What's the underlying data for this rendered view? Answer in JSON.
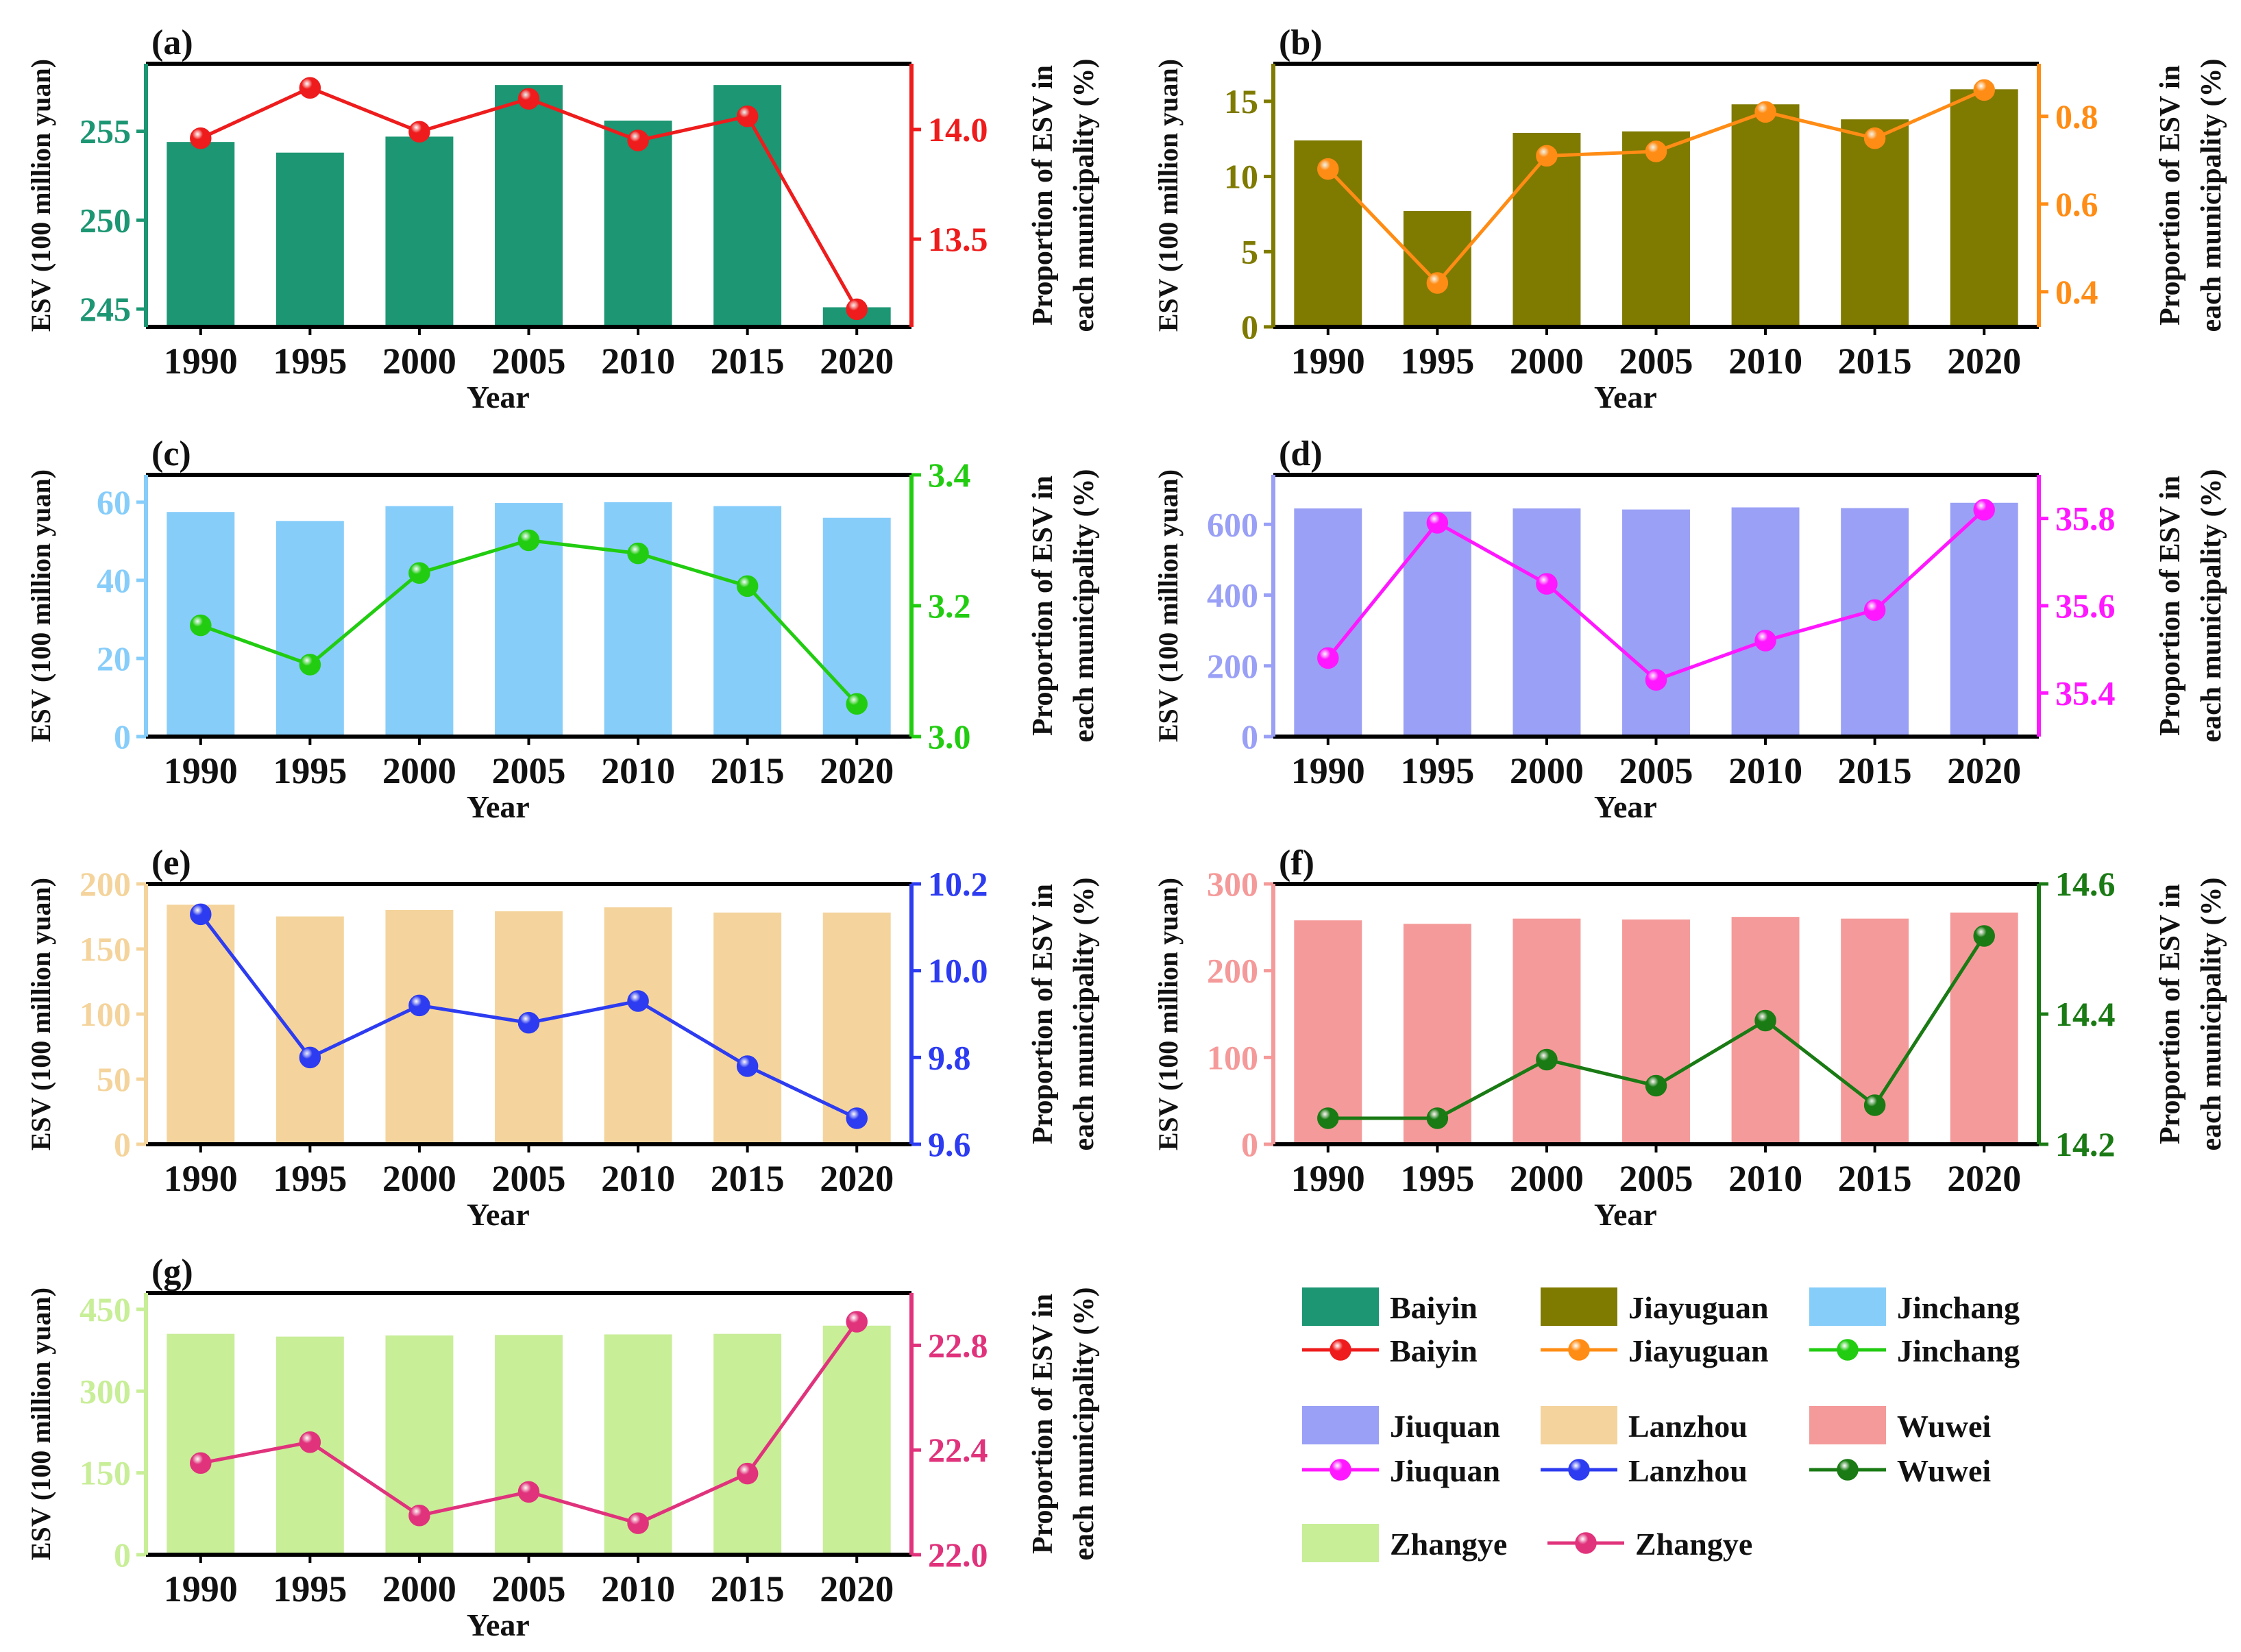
{
  "x_title": "Year",
  "y_left_title": "ESV (100 million yuan)",
  "y_right_title_line1": "Proportion of ESV in",
  "y_right_title_line2": "each municipality (%)",
  "chart_data": [
    {
      "panel": "(a)",
      "type": "bar+line",
      "name": "Baiyin",
      "categories": [
        "1990",
        "1995",
        "2000",
        "2005",
        "2010",
        "2015",
        "2020"
      ],
      "bar_values": [
        254.4,
        253.8,
        254.7,
        257.6,
        255.6,
        257.6,
        245.1
      ],
      "line_values": [
        13.96,
        14.19,
        13.99,
        14.14,
        13.95,
        14.06,
        13.18
      ],
      "bar_ylim": [
        244.0,
        258.8
      ],
      "bar_ticks": [
        "245",
        "250",
        "255"
      ],
      "line_ylim": [
        13.1,
        14.3
      ],
      "line_ticks": [
        "13.5",
        "14.0"
      ],
      "bar_color": "#1c9673",
      "line_color": "#ee1c1c",
      "right_axis_color": "#ee1c1c"
    },
    {
      "panel": "(b)",
      "type": "bar+line",
      "name": "Jiayuguan",
      "categories": [
        "1990",
        "1995",
        "2000",
        "2005",
        "2010",
        "2015",
        "2020"
      ],
      "bar_values": [
        12.4,
        7.7,
        12.9,
        13.0,
        14.8,
        13.8,
        15.8
      ],
      "line_values": [
        0.68,
        0.42,
        0.71,
        0.72,
        0.81,
        0.75,
        0.86
      ],
      "bar_ylim": [
        0,
        17.5
      ],
      "bar_ticks": [
        "0",
        "5",
        "10",
        "15"
      ],
      "line_ylim": [
        0.32,
        0.92
      ],
      "line_ticks": [
        "0.4",
        "0.6",
        "0.8"
      ],
      "bar_color": "#7f7a00",
      "line_color": "#ff8c14",
      "right_axis_color": "#ff8c14"
    },
    {
      "panel": "(c)",
      "type": "bar+line",
      "name": "Jinchang",
      "categories": [
        "1990",
        "1995",
        "2000",
        "2005",
        "2010",
        "2015",
        "2020"
      ],
      "bar_values": [
        57.5,
        55.2,
        59.0,
        59.8,
        60.0,
        59.0,
        56.0
      ],
      "line_values": [
        3.17,
        3.11,
        3.25,
        3.3,
        3.28,
        3.23,
        3.05
      ],
      "bar_ylim": [
        0,
        67
      ],
      "bar_ticks": [
        "0",
        "20",
        "40",
        "60"
      ],
      "line_ylim": [
        3.0,
        3.4
      ],
      "line_ticks": [
        "3.0",
        "3.2",
        "3.4"
      ],
      "bar_color": "#87cdfa",
      "line_color": "#22cc11",
      "right_axis_color": "#22cc11"
    },
    {
      "panel": "(d)",
      "type": "bar+line",
      "name": "Jiuquan",
      "categories": [
        "1990",
        "1995",
        "2000",
        "2005",
        "2010",
        "2015",
        "2020"
      ],
      "bar_values": [
        645,
        636,
        645,
        642,
        648,
        646,
        661
      ],
      "line_values": [
        35.48,
        35.79,
        35.65,
        35.43,
        35.52,
        35.59,
        35.82
      ],
      "bar_ylim": [
        0,
        740
      ],
      "bar_ticks": [
        "0",
        "200",
        "400",
        "600"
      ],
      "line_ylim": [
        35.3,
        35.9
      ],
      "line_ticks": [
        "35.4",
        "35.6",
        "35.8"
      ],
      "bar_color": "#9aa0f5",
      "line_color": "#ff18ff",
      "right_axis_color": "#ff18ff"
    },
    {
      "panel": "(e)",
      "type": "bar+line",
      "name": "Lanzhou",
      "categories": [
        "1990",
        "1995",
        "2000",
        "2005",
        "2010",
        "2015",
        "2020"
      ],
      "bar_values": [
        184,
        175,
        180,
        179,
        182,
        178,
        178
      ],
      "line_values": [
        10.13,
        9.8,
        9.92,
        9.88,
        9.93,
        9.78,
        9.66
      ],
      "bar_ylim": [
        0,
        200
      ],
      "bar_ticks": [
        "0",
        "50",
        "100",
        "150",
        "200"
      ],
      "line_ylim": [
        9.6,
        10.2
      ],
      "line_ticks": [
        "9.6",
        "9.8",
        "10.0",
        "10.2"
      ],
      "bar_color": "#f4d49c",
      "line_color": "#2d3cf0",
      "right_axis_color": "#2d3cf0"
    },
    {
      "panel": "(f)",
      "type": "bar+line",
      "name": "Wuwei",
      "categories": [
        "1990",
        "1995",
        "2000",
        "2005",
        "2010",
        "2015",
        "2020"
      ],
      "bar_values": [
        258,
        254,
        260,
        259,
        262,
        260,
        267
      ],
      "line_values": [
        14.24,
        14.24,
        14.33,
        14.29,
        14.39,
        14.26,
        14.52
      ],
      "bar_ylim": [
        0,
        300
      ],
      "bar_ticks": [
        "0",
        "100",
        "200",
        "300"
      ],
      "line_ylim": [
        14.2,
        14.6
      ],
      "line_ticks": [
        "14.2",
        "14.4",
        "14.6"
      ],
      "bar_color": "#f59a9a",
      "line_color": "#1a7a14",
      "right_axis_color": "#1a7a14"
    },
    {
      "panel": "(g)",
      "type": "bar+line",
      "name": "Zhangye",
      "categories": [
        "1990",
        "1995",
        "2000",
        "2005",
        "2010",
        "2015",
        "2020"
      ],
      "bar_values": [
        405,
        400,
        402,
        403,
        404,
        405,
        420
      ],
      "line_values": [
        22.35,
        22.43,
        22.15,
        22.24,
        22.12,
        22.31,
        22.89
      ],
      "bar_ylim": [
        0,
        480
      ],
      "bar_ticks": [
        "0",
        "150",
        "300",
        "450"
      ],
      "line_ylim": [
        22.0,
        23.0
      ],
      "line_ticks": [
        "22.0",
        "22.4",
        "22.8"
      ],
      "bar_color": "#c8ee98",
      "line_color": "#e0337c",
      "right_axis_color": "#e0337c"
    }
  ],
  "legend": {
    "placement": "bottom-right",
    "rows": [
      [
        {
          "kind": "bar",
          "label": "Baiyin",
          "color": "#1c9673"
        },
        {
          "kind": "bar",
          "label": "Jiayuguan",
          "color": "#7f7a00"
        },
        {
          "kind": "bar",
          "label": "Jinchang",
          "color": "#87cdfa"
        }
      ],
      [
        {
          "kind": "line",
          "label": "Baiyin",
          "color": "#ee1c1c"
        },
        {
          "kind": "line",
          "label": "Jiayuguan",
          "color": "#ff8c14"
        },
        {
          "kind": "line",
          "label": "Jinchang",
          "color": "#22cc11"
        }
      ],
      [
        {
          "kind": "bar",
          "label": "Jiuquan",
          "color": "#9aa0f5"
        },
        {
          "kind": "bar",
          "label": "Lanzhou",
          "color": "#f4d49c"
        },
        {
          "kind": "bar",
          "label": "Wuwei",
          "color": "#f59a9a"
        }
      ],
      [
        {
          "kind": "line",
          "label": "Jiuquan",
          "color": "#ff18ff"
        },
        {
          "kind": "line",
          "label": "Lanzhou",
          "color": "#2d3cf0"
        },
        {
          "kind": "line",
          "label": "Wuwei",
          "color": "#1a7a14"
        }
      ],
      [
        {
          "kind": "bar",
          "label": "Zhangye",
          "color": "#c8ee98"
        },
        {
          "kind": "line",
          "label": "Zhangye",
          "color": "#e0337c"
        }
      ]
    ]
  }
}
